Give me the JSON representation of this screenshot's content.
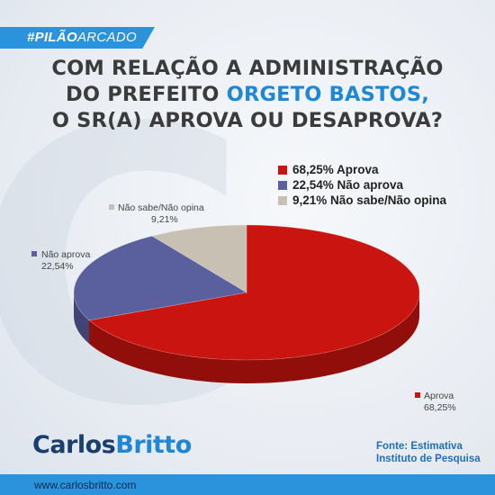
{
  "brand_tag": {
    "bold": "#PILÃO",
    "light": "ARCADO"
  },
  "headline": {
    "line1": "COM RELAÇÃO A ADMINISTRAÇÃO",
    "line2_pre": "DO PREFEITO ",
    "line2_highlight": "ORGETO BASTOS,",
    "line3": "O SR(A) APROVA OU DESAPROVA?"
  },
  "colors": {
    "accent": "#2a93db",
    "highlight": "#1f87d6",
    "aprova": "#c9140f",
    "nao_aprova": "#5a5f9e",
    "nao_sabe": "#c9c0b4"
  },
  "chart_data": {
    "type": "pie",
    "slices": [
      {
        "label": "Aprova",
        "value": 68.25,
        "value_label": "68,25%",
        "legend": "68,25% Aprova",
        "color": "#c9140f"
      },
      {
        "label": "Não aprova",
        "value": 22.54,
        "value_label": "22,54%",
        "legend": "22,54% Não aprova",
        "color": "#5a5f9e"
      },
      {
        "label": "Não sabe/Não opina",
        "value": 9.21,
        "value_label": "9,21%",
        "legend": "9,21% Não sabe/Não opina",
        "color": "#c9c0b4"
      }
    ],
    "legend_position": "top-right"
  },
  "logo": {
    "part1": "Carlos",
    "part2": "Britto"
  },
  "source": {
    "line1": "Fonte: Estimativa",
    "line2": "Instituto de Pesquisa"
  },
  "url": "www.carlosbritto.com"
}
